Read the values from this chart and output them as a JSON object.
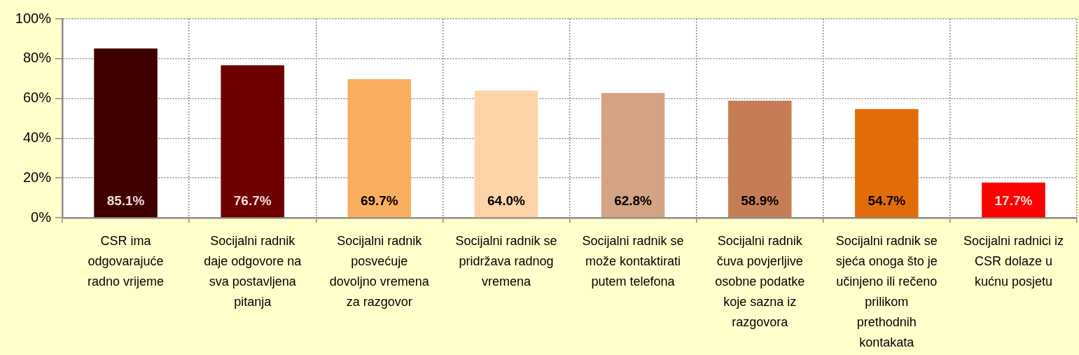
{
  "chart_data": {
    "type": "bar",
    "categories": [
      "CSR ima odgovarajuće radno vrijeme",
      "Socijalni radnik daje odgovore na sva postavljena pitanja",
      "Socijalni radnik posvećuje dovoljno vremena za razgovor",
      "Socijalni radnik se pridržava radnog vremena",
      "Socijalni radnik se može kontaktirati putem telefona",
      "Socijalni radnik čuva povjerljive osobne podatke koje sazna iz razgovora",
      "Socijalni radnik se sjeća onoga što je učinjeno ili rečeno prilikom prethodnih kontakata",
      "Socijalni radnici iz CSR dolaze u kućnu posjetu"
    ],
    "values": [
      85.1,
      76.7,
      69.7,
      64.0,
      62.8,
      58.9,
      54.7,
      17.7
    ],
    "colors": [
      "#3f0000",
      "#6f0000",
      "#f9ae60",
      "#fdd4a8",
      "#d4a285",
      "#c67d56",
      "#e36c0a",
      "#ff0000"
    ],
    "value_labels": [
      "85.1%",
      "76.7%",
      "69.7%",
      "64.0%",
      "62.8%",
      "58.9%",
      "54.7%",
      "17.7%"
    ],
    "ylim": [
      0,
      100
    ],
    "yticks": [
      {
        "value": 0,
        "label": "0%"
      },
      {
        "value": 20,
        "label": "20%"
      },
      {
        "value": 40,
        "label": "40%"
      },
      {
        "value": 60,
        "label": "60%"
      },
      {
        "value": 80,
        "label": "80%"
      },
      {
        "value": 100,
        "label": "100%"
      }
    ],
    "grid": true,
    "legend": false
  }
}
